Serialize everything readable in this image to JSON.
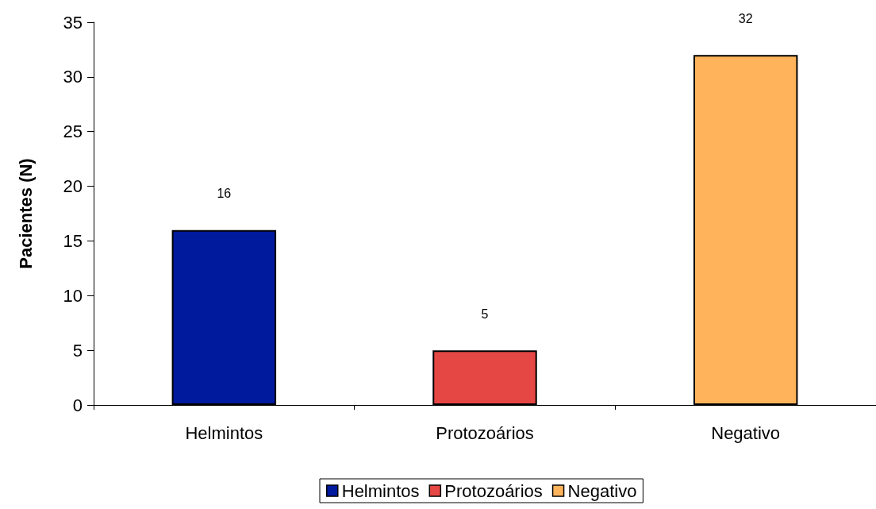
{
  "chart_data": {
    "type": "bar",
    "ylabel": "Pacientes (N)",
    "categories": [
      "Helmintos",
      "Protozoários",
      "Negativo"
    ],
    "series": [
      {
        "name": "Helmintos",
        "color": "#001a9e",
        "values": [
          16,
          null,
          null
        ]
      },
      {
        "name": "Protozoários",
        "color": "#e54744",
        "values": [
          null,
          5,
          null
        ]
      },
      {
        "name": "Negativo",
        "color": "#ffb45c",
        "values": [
          null,
          null,
          32
        ]
      }
    ],
    "ylim": [
      0,
      35
    ],
    "yticks": [
      0,
      5,
      10,
      15,
      20,
      25,
      30,
      35
    ],
    "data_labels": true,
    "grid": false,
    "legend": "bottom"
  }
}
